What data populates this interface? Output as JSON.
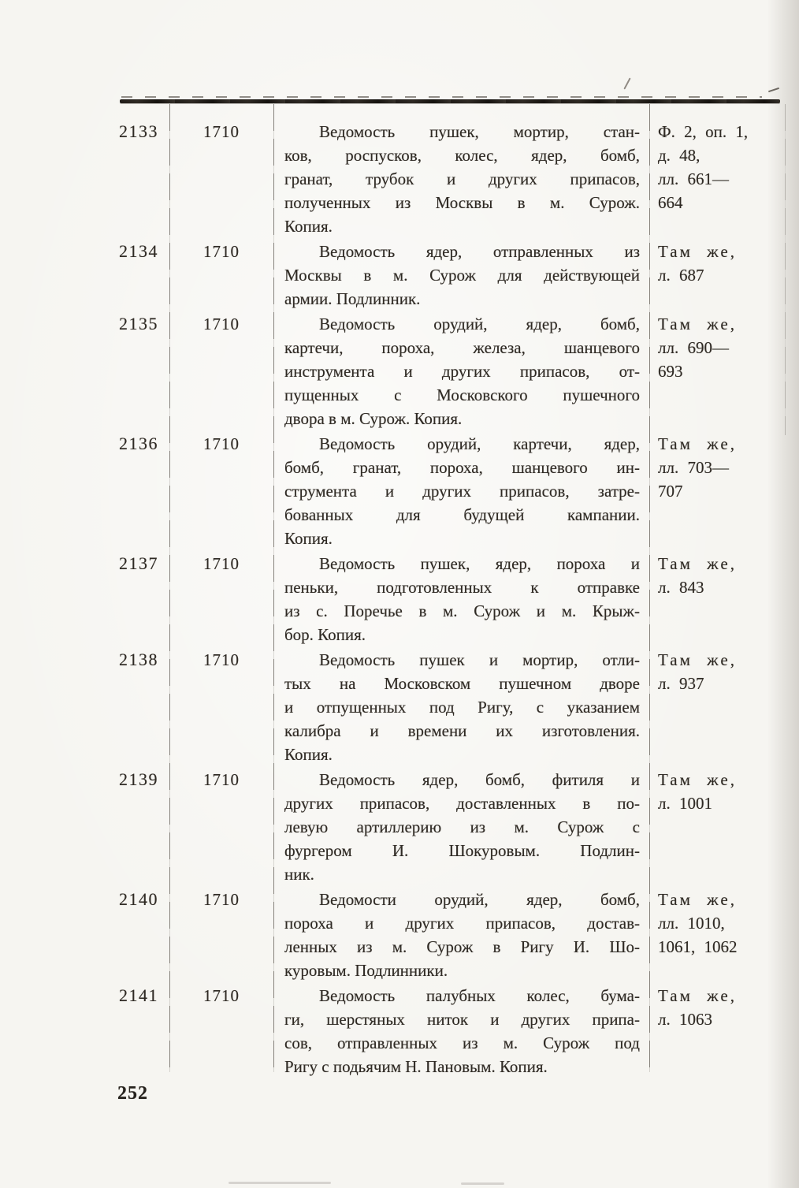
{
  "page": {
    "number": "252"
  },
  "table": {
    "rows": [
      {
        "no": "2133",
        "year": "1710",
        "description_lines": [
          "Ведомость пушек, мортир, стан-",
          "ков, роспусков, колес, ядер, бомб,",
          "гранат, трубок и других припасов,",
          "полученных из Москвы в м. Сурож.",
          "Копия."
        ],
        "reference_lines": [
          "Ф. 2, оп. 1,",
          "д. 48,",
          "лл. 661—",
          "664"
        ]
      },
      {
        "no": "2134",
        "year": "1710",
        "description_lines": [
          "Ведомость ядер, отправленных из",
          "Москвы в м. Сурож для действующей",
          "армии. Подлинник."
        ],
        "reference_lines": [
          "Там же,",
          "л. 687"
        ]
      },
      {
        "no": "2135",
        "year": "1710",
        "description_lines": [
          "Ведомость орудий, ядер, бомб,",
          "картечи, пороха, железа, шанцевого",
          "инструмента и других припасов, от-",
          "пущенных с Московского пушечного",
          "двора в м. Сурож. Копия."
        ],
        "reference_lines": [
          "Там же,",
          "лл. 690—",
          "693"
        ]
      },
      {
        "no": "2136",
        "year": "1710",
        "description_lines": [
          "Ведомость орудий, картечи, ядер,",
          "бомб, гранат, пороха, шанцевого ин-",
          "струмента и других припасов, затре-",
          "бованных для будущей кампании.",
          "Копия."
        ],
        "reference_lines": [
          "Там же,",
          "лл. 703—",
          "707"
        ]
      },
      {
        "no": "2137",
        "year": "1710",
        "description_lines": [
          "Ведомость пушек, ядер, пороха и",
          "пеньки, подготовленных к отправке",
          "из с. Поречье в м. Сурож и м. Крыж-",
          "бор. Копия."
        ],
        "reference_lines": [
          "Там же,",
          "л. 843"
        ]
      },
      {
        "no": "2138",
        "year": "1710",
        "description_lines": [
          "Ведомость пушек и мортир, отли-",
          "тых на Московском пушечном дворе",
          "и отпущенных под Ригу, с указанием",
          "калибра и времени их изготовления.",
          "Копия."
        ],
        "reference_lines": [
          "Там же,",
          "л. 937"
        ]
      },
      {
        "no": "2139",
        "year": "1710",
        "description_lines": [
          "Ведомость ядер, бомб, фитиля и",
          "других припасов, доставленных в по-",
          "левую артиллерию из м. Сурож с",
          "фургером И. Шокуровым. Подлин-",
          "ник."
        ],
        "reference_lines": [
          "Там же,",
          "л. 1001"
        ]
      },
      {
        "no": "2140",
        "year": "1710",
        "description_lines": [
          "Ведомости орудий, ядер, бомб,",
          "пороха и других припасов, достав-",
          "ленных из м. Сурож в Ригу И. Шо-",
          "куровым. Подлинники."
        ],
        "reference_lines": [
          "Там же,",
          "лл. 1010,",
          "1061, 1062"
        ]
      },
      {
        "no": "2141",
        "year": "1710",
        "description_lines": [
          "Ведомость палубных колес, бума-",
          "ги, шерстяных ниток и других припа-",
          "сов, отправленных из м. Сурож под",
          "Ригу с подьячим Н. Пановым. Копия."
        ],
        "reference_lines": [
          "Там же,",
          "л. 1063"
        ]
      }
    ]
  }
}
